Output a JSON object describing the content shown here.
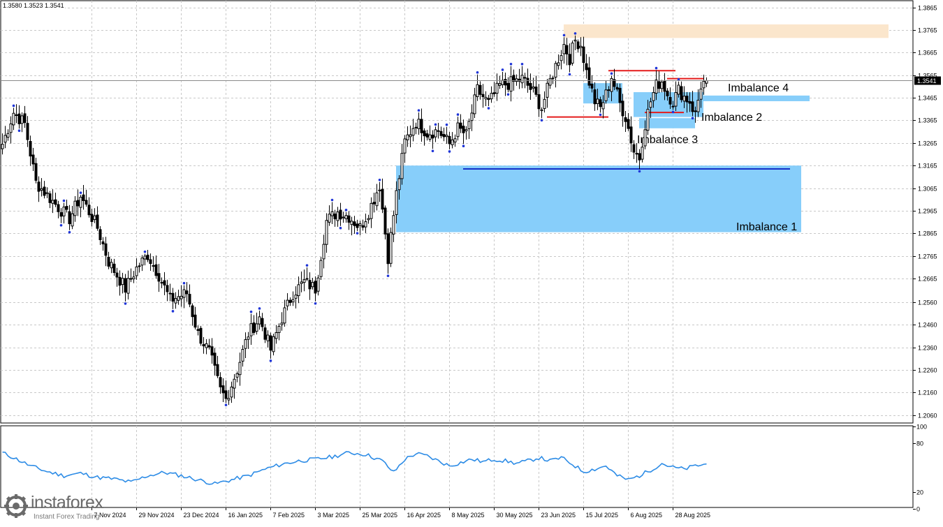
{
  "header": {
    "ohlc_text": "1.3580 1.3523 1.3541"
  },
  "branding": {
    "name": "instaforex",
    "tagline": "Instant Forex Trading"
  },
  "colors": {
    "candle": "#000000",
    "fractal": "#1f35d8",
    "imbalance": "#87cefa",
    "supply_zone": "#fbe6cc",
    "red_level": "#e41b1b",
    "blue_level": "#1530c8",
    "rsi_line": "#2d8ce6",
    "grid": "#c8c8c8",
    "current_price_bg": "#000000"
  },
  "chart_data": [
    {
      "type": "candlestick",
      "symbol_ohlc": "1.3580 1.3523 1.3541",
      "ylim": [
        1.2025,
        1.3895
      ],
      "y_ticks": [
        "1.3865",
        "1.3765",
        "1.3665",
        "1.3565",
        "1.3465",
        "1.3365",
        "1.3265",
        "1.3165",
        "1.3065",
        "1.2965",
        "1.2865",
        "1.2765",
        "1.2665",
        "1.2560",
        "1.2460",
        "1.2360",
        "1.2260",
        "1.2160",
        "1.2060"
      ],
      "x_ticks": [
        {
          "i": 32,
          "label": "7 Nov 2024"
        },
        {
          "i": 48,
          "label": "29 Nov 2024"
        },
        {
          "i": 64,
          "label": "23 Dec 2024"
        },
        {
          "i": 80,
          "label": "16 Jan 2025"
        },
        {
          "i": 96,
          "label": "7 Feb 2025"
        },
        {
          "i": 112,
          "label": "3 Mar 2025"
        },
        {
          "i": 128,
          "label": "25 Mar 2025"
        },
        {
          "i": 144,
          "label": "16 Apr 2025"
        },
        {
          "i": 160,
          "label": "8 May 2025"
        },
        {
          "i": 176,
          "label": "30 May 2025"
        },
        {
          "i": 192,
          "label": "23 Jun 2025"
        },
        {
          "i": 208,
          "label": "15 Jul 2025"
        },
        {
          "i": 224,
          "label": "6 Aug 2025"
        },
        {
          "i": 240,
          "label": "28 Aug 2025"
        }
      ],
      "current_price": 1.3541,
      "bar_count": 253,
      "keypoints": [
        [
          0,
          1.326
        ],
        [
          4,
          1.34
        ],
        [
          8,
          1.335
        ],
        [
          12,
          1.309
        ],
        [
          20,
          1.298
        ],
        [
          24,
          1.293
        ],
        [
          28,
          1.303
        ],
        [
          34,
          1.289
        ],
        [
          38,
          1.274
        ],
        [
          44,
          1.262
        ],
        [
          48,
          1.271
        ],
        [
          52,
          1.277
        ],
        [
          56,
          1.268
        ],
        [
          60,
          1.257
        ],
        [
          66,
          1.26
        ],
        [
          70,
          1.242
        ],
        [
          74,
          1.234
        ],
        [
          78,
          1.217
        ],
        [
          80,
          1.213
        ],
        [
          84,
          1.226
        ],
        [
          88,
          1.242
        ],
        [
          92,
          1.249
        ],
        [
          96,
          1.235
        ],
        [
          100,
          1.249
        ],
        [
          104,
          1.26
        ],
        [
          108,
          1.265
        ],
        [
          112,
          1.262
        ],
        [
          116,
          1.292
        ],
        [
          120,
          1.296
        ],
        [
          124,
          1.294
        ],
        [
          128,
          1.289
        ],
        [
          131,
          1.296
        ],
        [
          135,
          1.308
        ],
        [
          138,
          1.276
        ],
        [
          141,
          1.304
        ],
        [
          144,
          1.327
        ],
        [
          148,
          1.336
        ],
        [
          152,
          1.331
        ],
        [
          156,
          1.332
        ],
        [
          160,
          1.326
        ],
        [
          163,
          1.333
        ],
        [
          166,
          1.33
        ],
        [
          170,
          1.35
        ],
        [
          174,
          1.344
        ],
        [
          178,
          1.352
        ],
        [
          182,
          1.353
        ],
        [
          186,
          1.355
        ],
        [
          190,
          1.349
        ],
        [
          193,
          1.342
        ],
        [
          196,
          1.354
        ],
        [
          199,
          1.364
        ],
        [
          201,
          1.37
        ],
        [
          203,
          1.364
        ],
        [
          205,
          1.372
        ],
        [
          207,
          1.37
        ],
        [
          209,
          1.358
        ],
        [
          212,
          1.345
        ],
        [
          214,
          1.342
        ],
        [
          216,
          1.348
        ],
        [
          218,
          1.356
        ],
        [
          221,
          1.344
        ],
        [
          223,
          1.338
        ],
        [
          226,
          1.323
        ],
        [
          228,
          1.32
        ],
        [
          230,
          1.335
        ],
        [
          232,
          1.345
        ],
        [
          234,
          1.352
        ],
        [
          236,
          1.354
        ],
        [
          238,
          1.348
        ],
        [
          240,
          1.345
        ],
        [
          242,
          1.35
        ],
        [
          244,
          1.347
        ],
        [
          246,
          1.345
        ],
        [
          248,
          1.339
        ],
        [
          250,
          1.352
        ],
        [
          252,
          1.3541
        ]
      ],
      "rsi": {
        "ylim": [
          0,
          100
        ],
        "y_ticks": [
          "100",
          "80",
          "20",
          "0"
        ],
        "keypoints": [
          [
            0,
            68
          ],
          [
            4,
            62
          ],
          [
            10,
            52
          ],
          [
            16,
            45
          ],
          [
            22,
            40
          ],
          [
            28,
            43
          ],
          [
            34,
            38
          ],
          [
            40,
            36
          ],
          [
            46,
            32
          ],
          [
            52,
            40
          ],
          [
            58,
            44
          ],
          [
            64,
            40
          ],
          [
            70,
            35
          ],
          [
            76,
            30
          ],
          [
            82,
            35
          ],
          [
            88,
            40
          ],
          [
            94,
            48
          ],
          [
            100,
            54
          ],
          [
            106,
            58
          ],
          [
            112,
            60
          ],
          [
            118,
            63
          ],
          [
            124,
            68
          ],
          [
            130,
            66
          ],
          [
            136,
            58
          ],
          [
            140,
            44
          ],
          [
            144,
            60
          ],
          [
            148,
            67
          ],
          [
            152,
            64
          ],
          [
            156,
            58
          ],
          [
            160,
            52
          ],
          [
            164,
            56
          ],
          [
            168,
            60
          ],
          [
            172,
            57
          ],
          [
            176,
            60
          ],
          [
            180,
            58
          ],
          [
            184,
            55
          ],
          [
            188,
            58
          ],
          [
            192,
            62
          ],
          [
            196,
            58
          ],
          [
            200,
            62
          ],
          [
            204,
            54
          ],
          [
            208,
            45
          ],
          [
            212,
            48
          ],
          [
            216,
            52
          ],
          [
            220,
            40
          ],
          [
            224,
            35
          ],
          [
            228,
            40
          ],
          [
            232,
            47
          ],
          [
            236,
            55
          ],
          [
            240,
            50
          ],
          [
            244,
            48
          ],
          [
            248,
            52
          ],
          [
            252,
            54
          ]
        ]
      },
      "zones": [
        {
          "label": "Imbalance 1",
          "i0": 141,
          "i1": 286,
          "y_top": 1.3165,
          "y_bottom": 1.287
        },
        {
          "label": "Imbalance 2",
          "i0": 226,
          "i1": 251,
          "y_top": 1.349,
          "y_bottom": 1.338
        },
        {
          "label": "Imbalance 3",
          "i0": 228,
          "i1": 248,
          "y_top": 1.3375,
          "y_bottom": 1.333
        },
        {
          "label": "Imbalance 4",
          "i0": 251,
          "i1": 289,
          "y_top": 1.3475,
          "y_bottom": 1.345
        },
        {
          "label": "",
          "i0": 208,
          "i1": 222,
          "y_top": 1.353,
          "y_bottom": 1.344
        },
        {
          "label": "",
          "i0": 201,
          "i1": 318,
          "y_top": 1.379,
          "y_bottom": 1.373
        }
      ],
      "levels": [
        {
          "color": "red",
          "y": 1.338,
          "i0": 195,
          "i1": 217
        },
        {
          "color": "red",
          "y": 1.3585,
          "i0": 217,
          "i1": 241
        },
        {
          "color": "red",
          "y": 1.34,
          "i0": 230,
          "i1": 244
        },
        {
          "color": "red",
          "y": 1.355,
          "i0": 238,
          "i1": 251
        },
        {
          "color": "blue",
          "y": 1.315,
          "i0": 165,
          "i1": 282
        }
      ]
    }
  ]
}
